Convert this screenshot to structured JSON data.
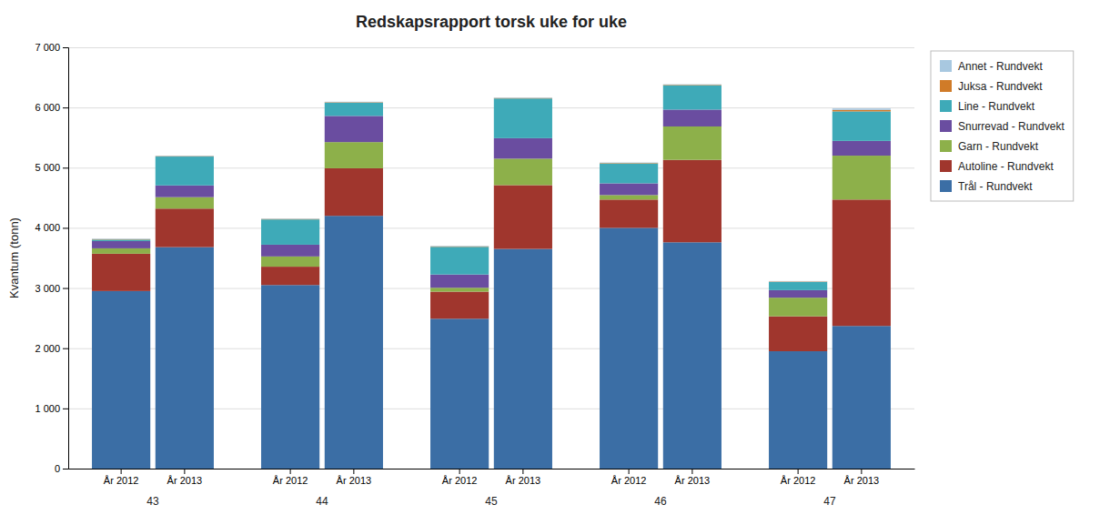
{
  "chart_data": {
    "type": "bar",
    "stacked": true,
    "title": "Redskapsrapport torsk uke for uke",
    "ylabel": "Kvantum (tonn)",
    "categories": [
      "43",
      "44",
      "45",
      "46",
      "47"
    ],
    "groups": [
      "År 2012",
      "År 2013"
    ],
    "series": [
      {
        "name": "Trål - Rundvekt",
        "color": "#3B6EA5",
        "values": [
          [
            2950,
            3680
          ],
          [
            3050,
            4200
          ],
          [
            2490,
            3650
          ],
          [
            4000,
            3760
          ],
          [
            1950,
            2370
          ]
        ]
      },
      {
        "name": "Autoline - Rundvekt",
        "color": "#A0362D",
        "values": [
          [
            620,
            640
          ],
          [
            305,
            790
          ],
          [
            450,
            1060
          ],
          [
            470,
            1370
          ],
          [
            580,
            2100
          ]
        ]
      },
      {
        "name": "Garn - Rundvekt",
        "color": "#8DB04A",
        "values": [
          [
            90,
            190
          ],
          [
            170,
            435
          ],
          [
            65,
            440
          ],
          [
            75,
            555
          ],
          [
            310,
            730
          ]
        ]
      },
      {
        "name": "Snurrevad - Rundvekt",
        "color": "#6A4DA0",
        "values": [
          [
            120,
            195
          ],
          [
            195,
            435
          ],
          [
            220,
            340
          ],
          [
            195,
            280
          ],
          [
            125,
            245
          ]
        ]
      },
      {
        "name": "Line - Rundvekt",
        "color": "#3EAAB8",
        "values": [
          [
            25,
            480
          ],
          [
            420,
            220
          ],
          [
            460,
            660
          ],
          [
            330,
            405
          ],
          [
            135,
            490
          ]
        ]
      },
      {
        "name": "Juksa - Rundvekt",
        "color": "#D07B28",
        "values": [
          [
            8,
            8
          ],
          [
            8,
            8
          ],
          [
            8,
            8
          ],
          [
            8,
            8
          ],
          [
            8,
            25
          ]
        ]
      },
      {
        "name": "Annet - Rundvekt",
        "color": "#A8C8E0",
        "values": [
          [
            8,
            8
          ],
          [
            8,
            8
          ],
          [
            8,
            8
          ],
          [
            8,
            8
          ],
          [
            8,
            25
          ]
        ]
      }
    ],
    "ylim": [
      0,
      7000
    ],
    "yticks": [
      0,
      {
        "value": 1000,
        "label": "1 000"
      },
      {
        "value": 2000,
        "label": "2 000"
      },
      {
        "value": 3000,
        "label": "3 000"
      },
      {
        "value": 4000,
        "label": "4 000"
      },
      {
        "value": 5000,
        "label": "5 000"
      },
      {
        "value": 6000,
        "label": "6 000"
      },
      {
        "value": 7000,
        "label": "7 000"
      }
    ],
    "grid": true,
    "legend": "right"
  }
}
